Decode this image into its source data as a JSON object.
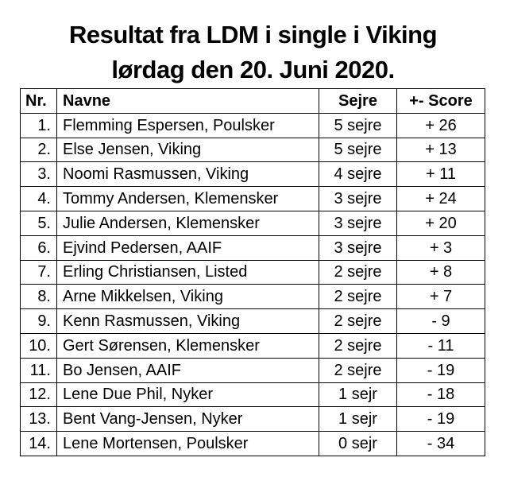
{
  "title_line1": "Resultat fra LDM i single i Viking",
  "title_line2": "lørdag den 20. Juni 2020.",
  "table": {
    "headers": {
      "nr": "Nr.",
      "name": "Navne",
      "wins": "Sejre",
      "score": "+- Score"
    },
    "rows": [
      {
        "nr": "1.",
        "name": "Flemming Espersen, Poulsker",
        "wins": "5 sejre",
        "score": "+ 26"
      },
      {
        "nr": "2.",
        "name": "Else Jensen, Viking",
        "wins": "5 sejre",
        "score": "+ 13"
      },
      {
        "nr": "3.",
        "name": "Noomi Rasmussen, Viking",
        "wins": "4 sejre",
        "score": "+ 11"
      },
      {
        "nr": "4.",
        "name": "Tommy Andersen, Klemensker",
        "wins": "3 sejre",
        "score": "+ 24"
      },
      {
        "nr": "5.",
        "name": "Julie Andersen, Klemensker",
        "wins": "3 sejre",
        "score": "+ 20"
      },
      {
        "nr": "6.",
        "name": "Ejvind Pedersen, AAIF",
        "wins": "3 sejre",
        "score": "+ 3"
      },
      {
        "nr": "7.",
        "name": "Erling Christiansen, Listed",
        "wins": "2 sejre",
        "score": "+ 8"
      },
      {
        "nr": "8.",
        "name": "Arne Mikkelsen, Viking",
        "wins": "2 sejre",
        "score": "+ 7"
      },
      {
        "nr": "9.",
        "name": "Kenn Rasmussen, Viking",
        "wins": "2 sejre",
        "score": "- 9"
      },
      {
        "nr": "10.",
        "name": "Gert Sørensen, Klemensker",
        "wins": "2 sejre",
        "score": "- 11"
      },
      {
        "nr": "11.",
        "name": "Bo Jensen, AAIF",
        "wins": "2 sejre",
        "score": "- 19"
      },
      {
        "nr": "12.",
        "name": "Lene Due Phil, Nyker",
        "wins": "1 sejr",
        "score": "- 18"
      },
      {
        "nr": "13.",
        "name": "Bent Vang-Jensen, Nyker",
        "wins": "1 sejr",
        "score": "- 19"
      },
      {
        "nr": "14.",
        "name": "Lene Mortensen, Poulsker",
        "wins": "0 sejr",
        "score": "- 34"
      }
    ]
  }
}
